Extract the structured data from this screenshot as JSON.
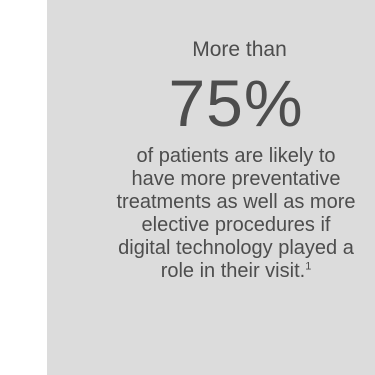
{
  "stat": {
    "intro": "More than",
    "value": "75%",
    "lines": [
      "of patients are likely to",
      "have more preventative",
      "treatments as well as more",
      "elective procedures if",
      "digital technology played a",
      "role in their visit."
    ],
    "footnote": "1"
  },
  "colors": {
    "card_background": "#dcdcdc",
    "text": "#4d4d4d"
  }
}
